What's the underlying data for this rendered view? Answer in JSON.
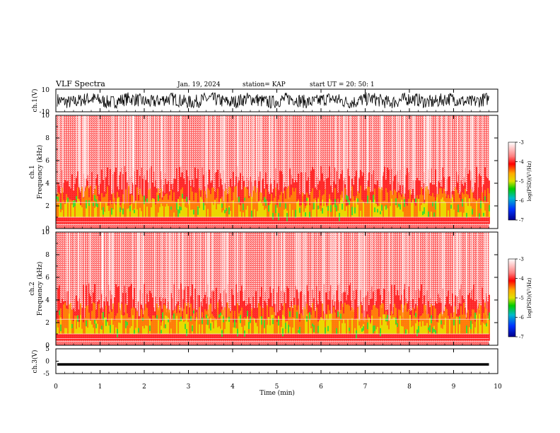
{
  "header": {
    "title": "VLF Spectra",
    "date": "Jan. 19, 2024",
    "station": "station= KAP",
    "start": "start  UT  =   20: 50: 1"
  },
  "chart_data": [
    {
      "type": "line",
      "name": "ch1-waveform",
      "ylabel": "ch.1(V)",
      "ylim": [
        -10,
        10
      ],
      "yticks": [
        "10",
        "-10"
      ],
      "x_range_min": [
        0,
        9.8
      ],
      "description_values": "noise amplitude approx -5 to 8 V"
    },
    {
      "type": "heatmap",
      "name": "ch1-spectrogram",
      "ylabel": "ch.1\nFrequency (kHz)",
      "ylim": [
        0,
        10
      ],
      "yticks": [
        "0",
        "2",
        "4",
        "6",
        "8",
        "10"
      ],
      "xlim": [
        0,
        10
      ],
      "data_until_min": 9.8,
      "colorbar": {
        "min": -7,
        "max": -3,
        "ticks": [
          "-3",
          "-4",
          "-5",
          "-6",
          "-7"
        ],
        "label": "log(PSD)(V²/Hz)"
      }
    },
    {
      "type": "heatmap",
      "name": "ch2-spectrogram",
      "ylabel": "ch.2\nFrequency (kHz)",
      "ylim": [
        0,
        10
      ],
      "yticks": [
        "0",
        "2",
        "4",
        "6",
        "8",
        "10"
      ],
      "xlim": [
        0,
        10
      ],
      "data_until_min": 9.8,
      "colorbar": {
        "min": -7,
        "max": -3,
        "ticks": [
          "-3",
          "-4",
          "-5",
          "-6",
          "-7"
        ],
        "label": "log(PSD)(V²/Hz)"
      }
    },
    {
      "type": "line",
      "name": "ch3-waveform",
      "ylabel": "ch.3(V)",
      "ylim": [
        -5,
        5
      ],
      "yticks": [
        "5",
        "0",
        "-5"
      ],
      "level": -1.3
    }
  ],
  "xaxis": {
    "label": "Time  (min)",
    "ticks": [
      "0",
      "1",
      "2",
      "3",
      "4",
      "5",
      "6",
      "7",
      "8",
      "9",
      "10"
    ]
  },
  "colors": {
    "red": "#ff1a1a",
    "orange": "#ff9900",
    "yellow": "#e8e800",
    "green": "#33dd33"
  }
}
